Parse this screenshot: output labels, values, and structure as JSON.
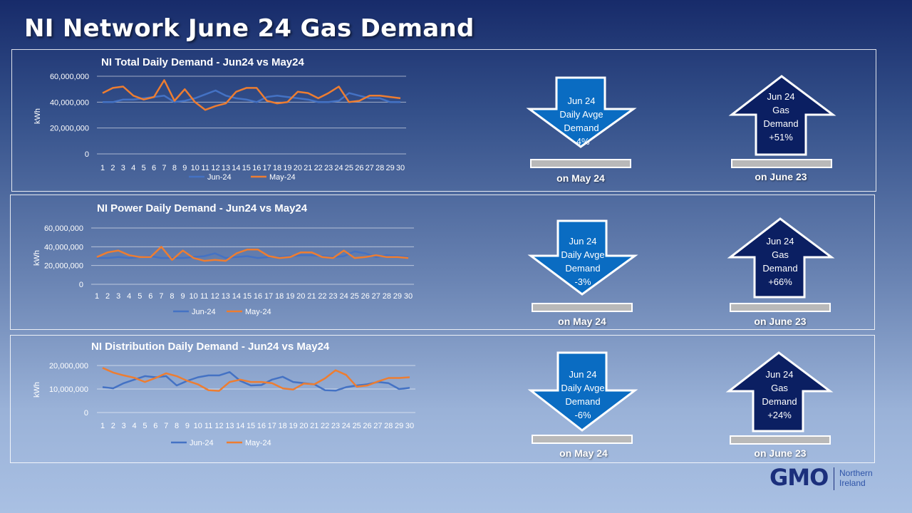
{
  "page_title": "NI Network June 24 Gas Demand",
  "colors": {
    "jun_series": "#4472c4",
    "may_series": "#ed7d31",
    "arrow_down": "#0a6cc2",
    "arrow_up": "#0b1f62",
    "bar": "#b9b9b9"
  },
  "chart_data": [
    {
      "type": "line",
      "title": "NI Total Daily Demand - Jun24 vs May24",
      "ylabel": "kWh",
      "ylim": [
        0,
        60000000
      ],
      "yticks": [
        "0",
        "20,000,000",
        "40,000,000",
        "60,000,000"
      ],
      "ytick_values": [
        0,
        20000000,
        40000000,
        60000000
      ],
      "categories": [
        "1",
        "2",
        "3",
        "4",
        "5",
        "6",
        "7",
        "8",
        "9",
        "10",
        "11",
        "12",
        "13",
        "14",
        "15",
        "16",
        "17",
        "18",
        "19",
        "20",
        "21",
        "22",
        "23",
        "24",
        "25",
        "26",
        "27",
        "28",
        "29",
        "30"
      ],
      "grid": true,
      "legend_position": "bottom",
      "series": [
        {
          "name": "Jun-24",
          "color": "#4472c4",
          "values": [
            40000000,
            40000000,
            42000000,
            42000000,
            43000000,
            44000000,
            45000000,
            40000000,
            41000000,
            43000000,
            46000000,
            49000000,
            45000000,
            43000000,
            42000000,
            40000000,
            44000000,
            45000000,
            44000000,
            43000000,
            42000000,
            40000000,
            40000000,
            41000000,
            47000000,
            45000000,
            43000000,
            43000000,
            40000000,
            40000000
          ]
        },
        {
          "name": "May-24",
          "color": "#ed7d31",
          "values": [
            47000000,
            51000000,
            52000000,
            45000000,
            42000000,
            44000000,
            57000000,
            41000000,
            50000000,
            40000000,
            34000000,
            37000000,
            39000000,
            48000000,
            51000000,
            51000000,
            41000000,
            39000000,
            40000000,
            48000000,
            47000000,
            43000000,
            47000000,
            52000000,
            40000000,
            41000000,
            45000000,
            45000000,
            44000000,
            43000000
          ]
        }
      ]
    },
    {
      "type": "line",
      "title": "NI Power Daily Demand - Jun24 vs May24",
      "ylabel": "kWh",
      "ylim": [
        0,
        60000000
      ],
      "yticks": [
        "0",
        "20,000,000",
        "40,000,000",
        "60,000,000"
      ],
      "ytick_values": [
        0,
        20000000,
        40000000,
        60000000
      ],
      "categories": [
        "1",
        "2",
        "3",
        "4",
        "5",
        "6",
        "7",
        "8",
        "9",
        "10",
        "11",
        "12",
        "13",
        "14",
        "15",
        "16",
        "17",
        "18",
        "19",
        "20",
        "21",
        "22",
        "23",
        "24",
        "25",
        "26",
        "27",
        "28",
        "29",
        "30"
      ],
      "grid": true,
      "legend_position": "bottom",
      "series": [
        {
          "name": "Jun-24",
          "color": "#4472c4",
          "values": [
            28000000,
            28000000,
            29000000,
            28000000,
            29000000,
            30000000,
            28000000,
            28000000,
            28000000,
            29000000,
            30000000,
            33000000,
            28000000,
            29000000,
            30000000,
            28000000,
            29000000,
            29000000,
            30000000,
            31000000,
            31000000,
            30000000,
            29000000,
            30000000,
            35000000,
            33000000,
            29000000,
            31000000,
            30000000,
            29000000
          ]
        },
        {
          "name": "May-24",
          "color": "#ed7d31",
          "values": [
            29000000,
            34000000,
            36000000,
            31000000,
            29000000,
            29000000,
            40000000,
            26000000,
            36000000,
            28000000,
            25000000,
            26000000,
            25000000,
            33000000,
            37000000,
            37000000,
            30000000,
            28000000,
            29000000,
            34000000,
            34000000,
            29000000,
            28000000,
            36000000,
            28000000,
            29000000,
            31000000,
            29000000,
            29000000,
            28000000
          ]
        }
      ]
    },
    {
      "type": "line",
      "title": "NI Distribution Daily Demand - Jun24 vs May24",
      "ylabel": "kWh",
      "ylim": [
        0,
        20000000
      ],
      "yticks": [
        "0",
        "10,000,000",
        "20,000,000"
      ],
      "ytick_values": [
        0,
        10000000,
        20000000
      ],
      "categories": [
        "1",
        "2",
        "3",
        "4",
        "5",
        "6",
        "7",
        "8",
        "9",
        "10",
        "11",
        "12",
        "13",
        "14",
        "15",
        "16",
        "17",
        "18",
        "19",
        "20",
        "21",
        "22",
        "23",
        "24",
        "25",
        "26",
        "27",
        "28",
        "29",
        "30"
      ],
      "grid": true,
      "legend_position": "bottom",
      "series": [
        {
          "name": "Jun-24",
          "color": "#4472c4",
          "values": [
            10800000,
            10300000,
            12500000,
            14000000,
            15500000,
            15000000,
            15500000,
            11500000,
            13500000,
            15000000,
            15800000,
            15800000,
            17200000,
            13500000,
            11500000,
            11700000,
            14000000,
            15200000,
            13000000,
            12500000,
            12000000,
            9500000,
            9300000,
            10800000,
            11500000,
            12000000,
            13000000,
            12500000,
            10000000,
            10500000
          ]
        },
        {
          "name": "May-24",
          "color": "#ed7d31",
          "values": [
            19000000,
            17000000,
            15800000,
            14800000,
            13000000,
            14700000,
            16700000,
            15500000,
            13500000,
            12000000,
            9500000,
            9200000,
            13000000,
            14000000,
            13000000,
            13000000,
            12500000,
            10300000,
            9800000,
            12300000,
            12000000,
            14500000,
            18000000,
            16000000,
            11000000,
            11500000,
            13200000,
            14700000,
            14700000,
            15000000
          ]
        }
      ]
    }
  ],
  "indicators": [
    {
      "label": "Jun 24\nDaily Avge\nDemand\n-4%",
      "caption": "on May 24",
      "direction": "down"
    },
    {
      "label": "Jun 24\nGas\nDemand\n+51%",
      "caption": "on June 23",
      "direction": "up"
    },
    {
      "label": "Jun 24\nDaily Avge\nDemand\n-3%",
      "caption": "on May 24",
      "direction": "down"
    },
    {
      "label": "Jun 24\nGas\nDemand\n+66%",
      "caption": "on June 23",
      "direction": "up"
    },
    {
      "label": "Jun 24\nDaily Avge\nDemand\n-6%",
      "caption": "on May 24",
      "direction": "down"
    },
    {
      "label": "Jun 24\nGas\nDemand\n+24%",
      "caption": "on June 23",
      "direction": "up"
    }
  ],
  "logo": {
    "name": "GMO",
    "sub": "Northern\nIreland"
  }
}
